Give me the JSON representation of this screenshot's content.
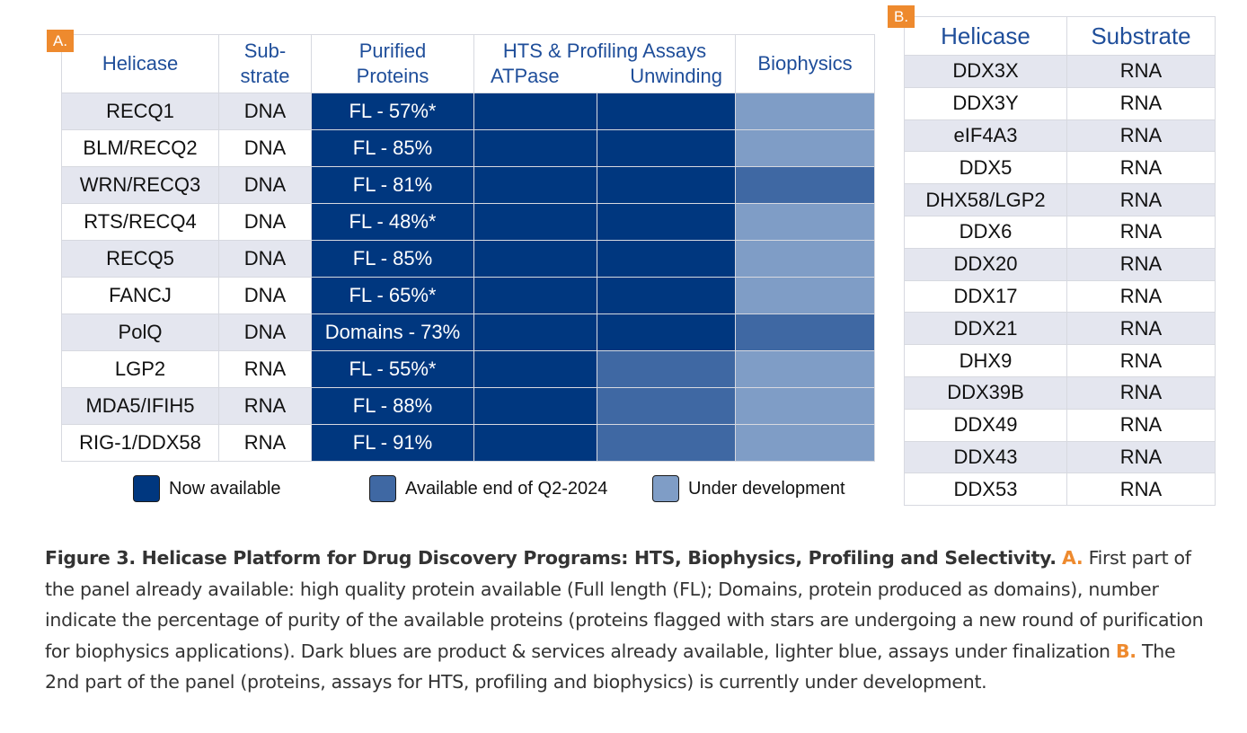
{
  "panel_a": {
    "tag": "A.",
    "headers": {
      "helicase": "Helicase",
      "substrate_1": "Sub-",
      "substrate_2": "strate",
      "purified_1": "Purified",
      "purified_2": "Proteins",
      "hts": "HTS & Profiling Assays",
      "atpase": "ATPase",
      "unwinding": "Unwinding",
      "biophysics": "Biophysics"
    },
    "rows": [
      {
        "helicase": "RECQ1",
        "substrate": "DNA",
        "purified": "FL - 57%*",
        "atpase": "now",
        "unwinding": "now",
        "biophysics": "dev"
      },
      {
        "helicase": "BLM/RECQ2",
        "substrate": "DNA",
        "purified": "FL - 85%",
        "atpase": "now",
        "unwinding": "now",
        "biophysics": "dev"
      },
      {
        "helicase": "WRN/RECQ3",
        "substrate": "DNA",
        "purified": "FL - 81%",
        "atpase": "now",
        "unwinding": "now",
        "biophysics": "q2"
      },
      {
        "helicase": "RTS/RECQ4",
        "substrate": "DNA",
        "purified": "FL - 48%*",
        "atpase": "now",
        "unwinding": "now",
        "biophysics": "dev"
      },
      {
        "helicase": "RECQ5",
        "substrate": "DNA",
        "purified": "FL - 85%",
        "atpase": "now",
        "unwinding": "now",
        "biophysics": "dev"
      },
      {
        "helicase": "FANCJ",
        "substrate": "DNA",
        "purified": "FL - 65%*",
        "atpase": "now",
        "unwinding": "now",
        "biophysics": "dev"
      },
      {
        "helicase": "PolQ",
        "substrate": "DNA",
        "purified": "Domains - 73%",
        "atpase": "now",
        "unwinding": "now",
        "biophysics": "q2"
      },
      {
        "helicase": "LGP2",
        "substrate": "RNA",
        "purified": "FL - 55%*",
        "atpase": "now",
        "unwinding": "q2",
        "biophysics": "dev"
      },
      {
        "helicase": "MDA5/IFIH5",
        "substrate": "RNA",
        "purified": "FL - 88%",
        "atpase": "now",
        "unwinding": "q2",
        "biophysics": "dev"
      },
      {
        "helicase": "RIG-1/DDX58",
        "substrate": "RNA",
        "purified": "FL - 91%",
        "atpase": "now",
        "unwinding": "q2",
        "biophysics": "dev"
      }
    ],
    "legend": [
      {
        "key": "now",
        "label": "Now available",
        "color": "#00377f"
      },
      {
        "key": "q2",
        "label": "Available end of Q2-2024",
        "color": "#3f68a3"
      },
      {
        "key": "dev",
        "label": "Under development",
        "color": "#7f9dc6"
      }
    ]
  },
  "panel_b": {
    "tag": "B.",
    "headers": {
      "helicase": "Helicase",
      "substrate": "Substrate"
    },
    "rows": [
      {
        "helicase": "DDX3X",
        "substrate": "RNA"
      },
      {
        "helicase": "DDX3Y",
        "substrate": "RNA"
      },
      {
        "helicase": "eIF4A3",
        "substrate": "RNA"
      },
      {
        "helicase": "DDX5",
        "substrate": "RNA"
      },
      {
        "helicase": "DHX58/LGP2",
        "substrate": "RNA"
      },
      {
        "helicase": "DDX6",
        "substrate": "RNA"
      },
      {
        "helicase": "DDX20",
        "substrate": "RNA"
      },
      {
        "helicase": "DDX17",
        "substrate": "RNA"
      },
      {
        "helicase": "DDX21",
        "substrate": "RNA"
      },
      {
        "helicase": "DHX9",
        "substrate": "RNA"
      },
      {
        "helicase": "DDX39B",
        "substrate": "RNA"
      },
      {
        "helicase": "DDX49",
        "substrate": "RNA"
      },
      {
        "helicase": "DDX43",
        "substrate": "RNA"
      },
      {
        "helicase": "DDX53",
        "substrate": "RNA"
      }
    ]
  },
  "caption": {
    "title": "Figure 3. Helicase Platform for Drug Discovery Programs: HTS, Biophysics, Profiling and Selectivity.",
    "a_label": "A.",
    "a_text": "First part of the panel already available: high quality protein available (Full length (FL); Domains, protein produced as domains), number indicate the percentage of purity of the available proteins (proteins flagged with stars are undergoing a new round of purification for biophysics applications). Dark blues are product & services already available, lighter blue, assays under finalization",
    "b_label": "B.",
    "b_text": "The 2nd part of the panel (proteins, assays for HTS, profiling and biophysics) is currently under development."
  }
}
